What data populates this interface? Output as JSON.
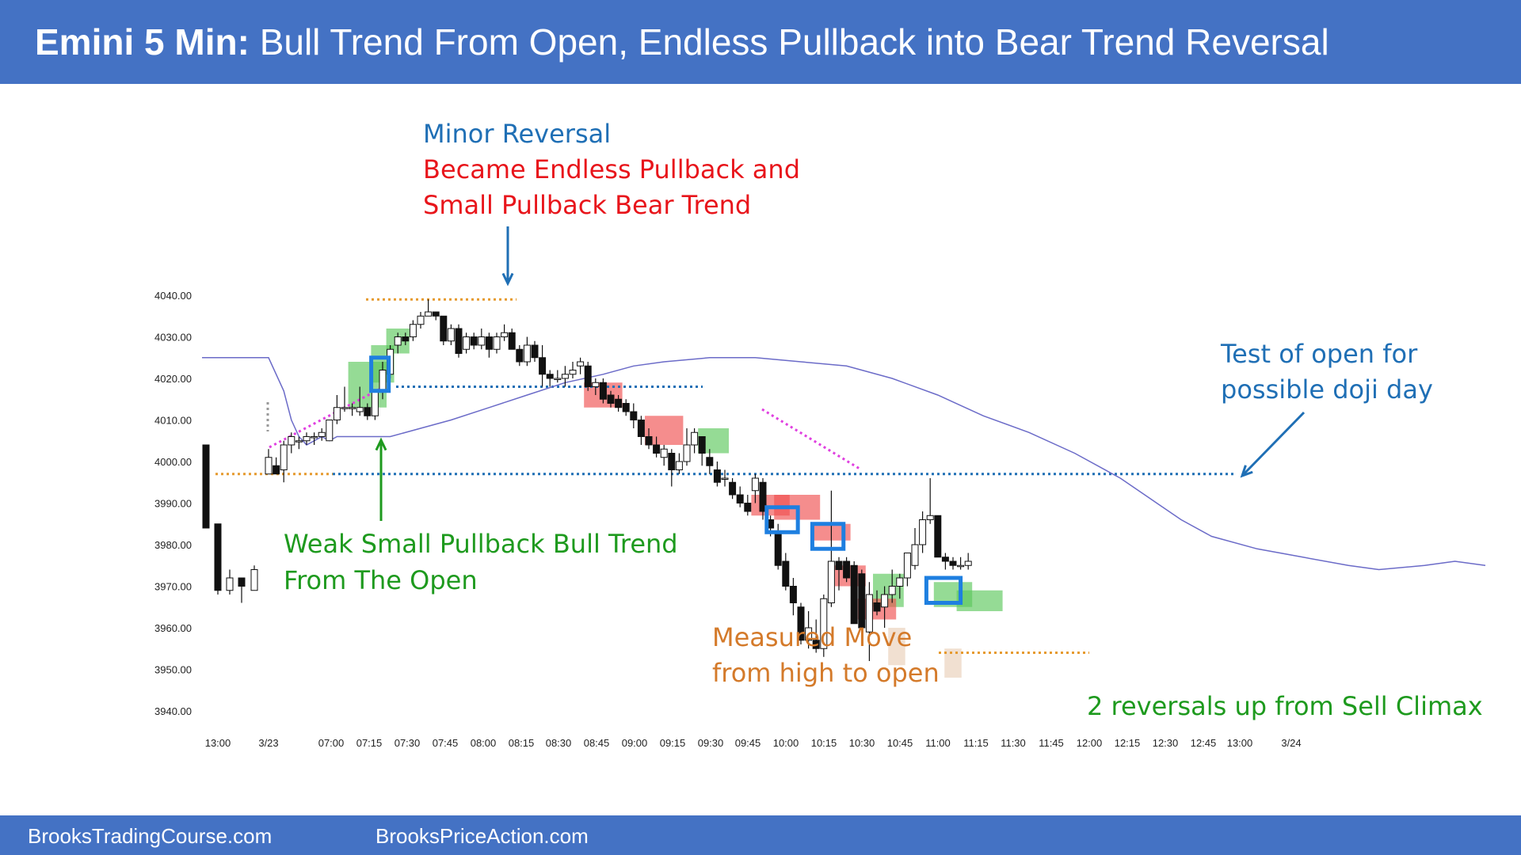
{
  "header": {
    "title_bold": "Emini 5 Min:",
    "title_rest": "Bull Trend From Open, Endless Pullback into Bear Trend Reversal"
  },
  "footer": {
    "left": "BrooksTradingCourse.com",
    "right": "BrooksPriceAction.com"
  },
  "colors": {
    "header_bg": "#4472C4",
    "bull_highlight": "#5CC85C",
    "bear_highlight": "#F05050",
    "signal_box": "#1E7FE0",
    "ema": "#6B6BC8",
    "blue_dots": "#1F6FB5",
    "orange_dots": "#E69A2E",
    "magenta_dots": "#E040E0"
  },
  "annotations": {
    "minor_reversal": "Minor Reversal",
    "endless_1": "Became Endless Pullback and",
    "endless_2": "Small Pullback Bear Trend",
    "weak_1": "Weak Small Pullback Bull Trend",
    "weak_2": "From The Open",
    "test_1": "Test of open for",
    "test_2": "possible doji day",
    "mm_1": "Measured Move",
    "mm_2": "from high to open",
    "reversals": "2 reversals up from Sell Climax"
  },
  "chart_data": {
    "type": "candlestick",
    "ylim": [
      3940,
      4040
    ],
    "y_ticks": [
      "4040.00",
      "4030.00",
      "4020.00",
      "4010.00",
      "4000.00",
      "3990.00",
      "3980.00",
      "3970.00",
      "3960.00",
      "3950.00",
      "3940.00"
    ],
    "x_ticks": [
      "13:00",
      "3/23",
      "07:00",
      "07:15",
      "07:30",
      "07:45",
      "08:00",
      "08:15",
      "08:30",
      "08:45",
      "09:00",
      "09:15",
      "09:30",
      "09:45",
      "10:00",
      "10:15",
      "10:30",
      "10:45",
      "11:00",
      "11:15",
      "11:30",
      "11:45",
      "12:00",
      "12:15",
      "12:30",
      "12:45",
      "13:00",
      "3/24"
    ],
    "reference_levels": {
      "today_open": 3997,
      "high": 4039,
      "breakout_level": 4018,
      "measured_move_target": 3954
    },
    "prior_day": [
      [
        4004,
        4004,
        3984,
        3984
      ],
      [
        3985,
        3985,
        3968,
        3969
      ],
      [
        3969,
        3974,
        3968,
        3972
      ],
      [
        3972,
        3972,
        3966,
        3970
      ],
      [
        3969,
        3975,
        3969,
        3974
      ]
    ],
    "today": [
      [
        3997,
        4003,
        3997,
        4001
      ],
      [
        3999,
        4001,
        3997,
        3997
      ],
      [
        3998,
        4005,
        3995,
        4004
      ],
      [
        4004,
        4007,
        4002,
        4006
      ],
      [
        4005,
        4006,
        4003,
        4005
      ],
      [
        4005,
        4007,
        4004,
        4006
      ],
      [
        4006,
        4007,
        4004,
        4006
      ],
      [
        4006,
        4008,
        4005,
        4007
      ],
      [
        4005,
        4010,
        4005,
        4010
      ],
      [
        4010,
        4016,
        4009,
        4013
      ],
      [
        4013,
        4018,
        4012,
        4013
      ],
      [
        4013,
        4014,
        4011,
        4013
      ],
      [
        4012,
        4018,
        4011,
        4013
      ],
      [
        4013,
        4014,
        4010,
        4011
      ],
      [
        4011,
        4016,
        4010,
        4017
      ],
      [
        4017,
        4024,
        4015,
        4022
      ],
      [
        4021,
        4028,
        4020,
        4027
      ],
      [
        4028,
        4031,
        4026,
        4030
      ],
      [
        4030,
        4031,
        4028,
        4029
      ],
      [
        4030,
        4034,
        4029,
        4033
      ],
      [
        4033,
        4036,
        4032,
        4035
      ],
      [
        4035,
        4039,
        4035,
        4036
      ],
      [
        4036,
        4036,
        4034,
        4035
      ],
      [
        4035,
        4035,
        4028,
        4029
      ],
      [
        4029,
        4033,
        4028,
        4032
      ],
      [
        4032,
        4033,
        4025,
        4026
      ],
      [
        4027,
        4031,
        4026,
        4030
      ],
      [
        4030,
        4031,
        4027,
        4028
      ],
      [
        4028,
        4032,
        4027,
        4030
      ],
      [
        4030,
        4031,
        4025,
        4027
      ],
      [
        4027,
        4031,
        4026,
        4030
      ],
      [
        4030,
        4033,
        4029,
        4031
      ],
      [
        4031,
        4032,
        4027,
        4027
      ],
      [
        4027,
        4028,
        4023,
        4024
      ],
      [
        4024,
        4030,
        4023,
        4028
      ],
      [
        4028,
        4029,
        4024,
        4025
      ],
      [
        4025,
        4028,
        4018,
        4021
      ],
      [
        4021,
        4022,
        4018,
        4020
      ],
      [
        4020,
        4022,
        4019,
        4020
      ],
      [
        4020,
        4023,
        4018,
        4021
      ],
      [
        4021,
        4024,
        4020,
        4022
      ],
      [
        4023,
        4025,
        4021,
        4024
      ],
      [
        4023,
        4024,
        4017,
        4018
      ],
      [
        4018,
        4020,
        4016,
        4019
      ],
      [
        4019,
        4020,
        4014,
        4015
      ],
      [
        4016,
        4017,
        4013,
        4014
      ],
      [
        4015,
        4016,
        4012,
        4013
      ],
      [
        4014,
        4015,
        4011,
        4012
      ],
      [
        4012,
        4014,
        4008,
        4010
      ],
      [
        4010,
        4011,
        4004,
        4006
      ],
      [
        4006,
        4008,
        4003,
        4004
      ],
      [
        4004,
        4006,
        4001,
        4002
      ],
      [
        4001,
        4004,
        3999,
        4003
      ],
      [
        4002,
        4003,
        3994,
        3998
      ],
      [
        3998,
        4002,
        3997,
        4000
      ],
      [
        4000,
        4008,
        3999,
        4004
      ],
      [
        4004,
        4008,
        4002,
        4007
      ],
      [
        4006,
        4006,
        3999,
        4002
      ],
      [
        4001,
        4003,
        3997,
        3999
      ],
      [
        3998,
        4000,
        3994,
        3995
      ],
      [
        3996,
        3998,
        3994,
        3996
      ],
      [
        3995,
        3996,
        3991,
        3992
      ],
      [
        3992,
        3994,
        3989,
        3990
      ],
      [
        3990,
        3992,
        3987,
        3988
      ],
      [
        3993,
        3997,
        3990,
        3996
      ],
      [
        3995,
        3996,
        3986,
        3988
      ],
      [
        3986,
        3987,
        3982,
        3984
      ],
      [
        3983,
        3985,
        3974,
        3975
      ],
      [
        3976,
        3978,
        3969,
        3970
      ],
      [
        3970,
        3972,
        3963,
        3966
      ],
      [
        3965,
        3966,
        3956,
        3957
      ],
      [
        3957,
        3964,
        3955,
        3960
      ],
      [
        3957,
        3962,
        3954,
        3955
      ],
      [
        3955,
        3968,
        3953,
        3967
      ],
      [
        3966,
        3993,
        3965,
        3976
      ],
      [
        3976,
        3977,
        3969,
        3974
      ],
      [
        3976,
        3977,
        3971,
        3972
      ],
      [
        3975,
        3976,
        3961,
        3961
      ],
      [
        3973,
        3974,
        3957,
        3960
      ],
      [
        3959,
        3971,
        3952,
        3968
      ],
      [
        3966,
        3969,
        3963,
        3964
      ],
      [
        3965,
        3970,
        3960,
        3968
      ],
      [
        3968,
        3974,
        3966,
        3970
      ],
      [
        3970,
        3973,
        3967,
        3972
      ],
      [
        3972,
        3978,
        3970,
        3978
      ],
      [
        3975,
        3984,
        3974,
        3980
      ],
      [
        3980,
        3988,
        3978,
        3986
      ],
      [
        3986,
        3996,
        3985,
        3987
      ],
      [
        3987,
        3987,
        3977,
        3977
      ],
      [
        3977,
        3978,
        3974,
        3976
      ],
      [
        3976,
        3977,
        3974,
        3975
      ],
      [
        3975,
        3977,
        3974,
        3975
      ],
      [
        3975,
        3978,
        3974,
        3976
      ]
    ],
    "ema": [
      [
        0,
        4025
      ],
      [
        2,
        4017
      ],
      [
        3,
        4010
      ],
      [
        4,
        4006
      ],
      [
        5,
        4004
      ],
      [
        6,
        4005
      ],
      [
        7,
        4006
      ],
      [
        8,
        4005
      ],
      [
        9,
        4006
      ],
      [
        10,
        4006
      ],
      [
        13,
        4006
      ],
      [
        16,
        4006
      ],
      [
        20,
        4008
      ],
      [
        24,
        4010
      ],
      [
        29,
        4013
      ],
      [
        34,
        4016
      ],
      [
        39,
        4019
      ],
      [
        44,
        4021
      ],
      [
        48,
        4023
      ],
      [
        52,
        4024
      ],
      [
        58,
        4025
      ],
      [
        64,
        4025
      ],
      [
        70,
        4024
      ],
      [
        76,
        4023
      ],
      [
        82,
        4020
      ],
      [
        88,
        4016
      ],
      [
        94,
        4011
      ],
      [
        100,
        4007
      ],
      [
        106,
        4002
      ],
      [
        112,
        3996
      ],
      [
        116,
        3991
      ],
      [
        120,
        3986
      ],
      [
        124,
        3982
      ],
      [
        130,
        3979
      ],
      [
        136,
        3977
      ],
      [
        142,
        3975
      ],
      [
        146,
        3974
      ],
      [
        152,
        3975
      ],
      [
        156,
        3976
      ],
      [
        160,
        3975
      ]
    ]
  }
}
